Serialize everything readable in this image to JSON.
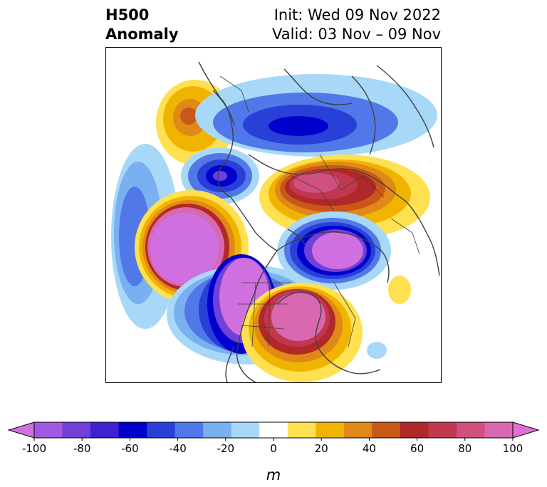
{
  "title": {
    "line1": "H500",
    "line2": "Anomaly",
    "init": "Init: Wed 09 Nov 2022",
    "valid": "Valid: 03 Nov – 09 Nov"
  },
  "colorbar": {
    "unit": "m",
    "ticks": [
      "-100",
      "-80",
      "-60",
      "-40",
      "-20",
      "0",
      "20",
      "40",
      "60",
      "80",
      "100"
    ],
    "colors": [
      "#d070e0",
      "#a058e0",
      "#7040d8",
      "#4020d0",
      "#0000cc",
      "#2840d8",
      "#5078e8",
      "#78b0f0",
      "#a8d8f8",
      "#ffffff",
      "#ffe050",
      "#f0b400",
      "#e08818",
      "#c85818",
      "#b02828",
      "#c03850",
      "#d05080",
      "#d868b0",
      "#e070d8"
    ]
  },
  "map": {
    "anomaly_colors": {
      "neg_strong": "#d070e0",
      "neg_dark": "#0000cc",
      "neg_mid": "#5078e8",
      "neg_light": "#a8d8f8",
      "pos_light": "#ffe050",
      "pos_mid": "#f0b400",
      "pos_dark": "#b02828",
      "pos_strong": "#d070e0"
    }
  }
}
